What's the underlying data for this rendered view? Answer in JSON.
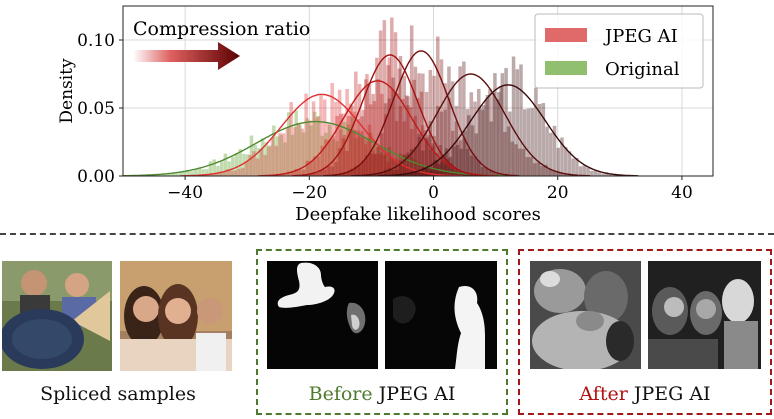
{
  "chart_data": {
    "type": "histogram",
    "xlabel": "Deepfake likelihood scores",
    "ylabel": "Density",
    "xlim": [
      -50,
      45
    ],
    "ylim": [
      0,
      0.125
    ],
    "xticks": [
      -40,
      -20,
      0,
      20,
      40
    ],
    "xtick_labels": [
      "−40",
      "−20",
      "0",
      "20",
      "40"
    ],
    "yticks": [
      0.0,
      0.05,
      0.1
    ],
    "ytick_labels": [
      "0.00",
      "0.05",
      "0.10"
    ],
    "grid": true,
    "legend_position": "top-right",
    "legend": [
      {
        "label": "JPEG AI",
        "color": "#e06a6a"
      },
      {
        "label": "Original",
        "color": "#8fbf6f"
      }
    ],
    "annotation": {
      "text": "Compression ratio",
      "arrow": "gradient right, light red to dark red"
    },
    "series": [
      {
        "name": "Original",
        "mean": -19,
        "std": 9.5,
        "peak_density": 0.04,
        "color": "#4e8a30"
      },
      {
        "name": "JPEG AI",
        "mean": -18,
        "std": 6.5,
        "peak_density": 0.06,
        "color": "#e03030"
      },
      {
        "name": "JPEG AI",
        "mean": -9,
        "std": 5.5,
        "peak_density": 0.07,
        "color": "#c21a1a"
      },
      {
        "name": "JPEG AI",
        "mean": -7,
        "std": 4.5,
        "peak_density": 0.089,
        "color": "#a31212"
      },
      {
        "name": "JPEG AI",
        "mean": -2,
        "std": 4.5,
        "peak_density": 0.092,
        "color": "#7a0c0c"
      },
      {
        "name": "JPEG AI",
        "mean": 6,
        "std": 5.5,
        "peak_density": 0.075,
        "color": "#5a0e0e"
      },
      {
        "name": "JPEG AI",
        "mean": 12,
        "std": 6,
        "peak_density": 0.067,
        "color": "#3a0a0a"
      }
    ]
  },
  "captions": {
    "spliced": "Spliced samples",
    "before_prefix": "Before",
    "before_suffix": " JPEG AI",
    "after_prefix": "After",
    "after_suffix": " JPEG AI"
  },
  "colors": {
    "before_accent": "#4e7a2e",
    "after_accent": "#b01010",
    "before_box": "#4e7a2e",
    "after_box": "#a01818"
  }
}
